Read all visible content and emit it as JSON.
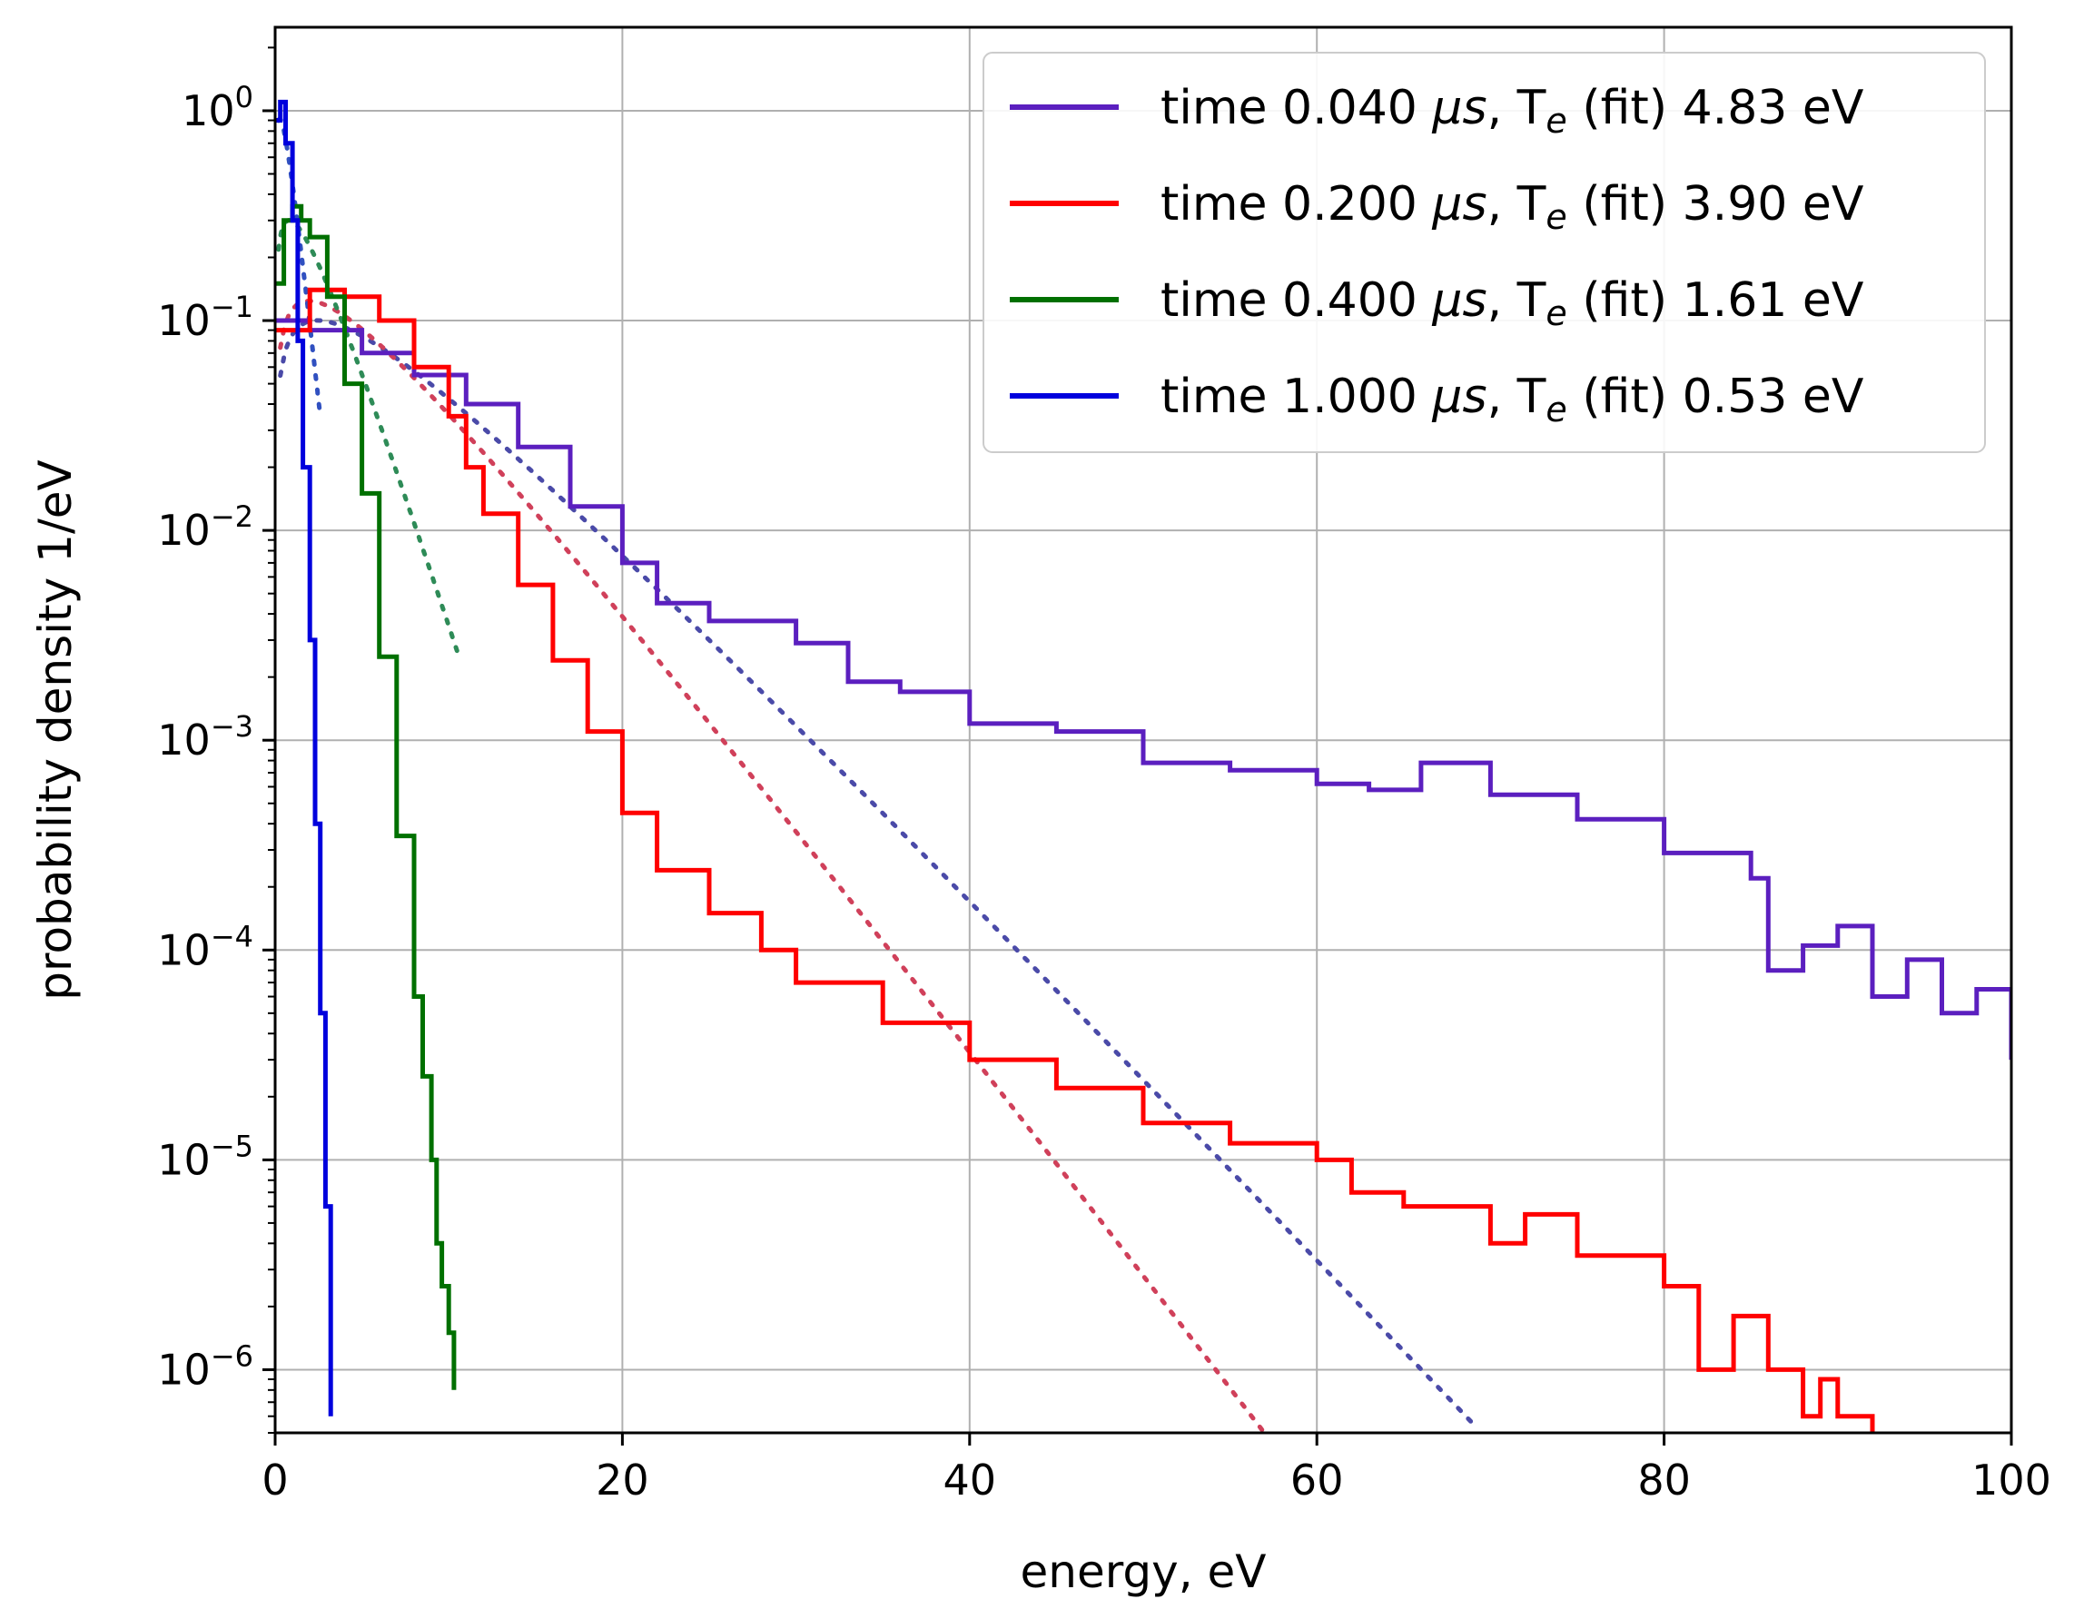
{
  "chart_data": {
    "type": "line",
    "title": "",
    "xlabel": "energy, eV",
    "ylabel": "probability density 1/eV",
    "xlim": [
      0,
      100
    ],
    "ylim": [
      5e-07,
      2.5
    ],
    "yscale": "log",
    "grid": true,
    "legend_position": "top-right",
    "x_ticks": [
      0,
      20,
      40,
      60,
      80,
      100
    ],
    "x_tick_labels": [
      "0",
      "20",
      "40",
      "60",
      "80",
      "100"
    ],
    "y_ticks": [
      1,
      0.1,
      0.01,
      0.001,
      0.0001,
      1e-05,
      1e-06
    ],
    "y_tick_labels": [
      {
        "base": "10",
        "exp": "0"
      },
      {
        "base": "10",
        "exp": "−1"
      },
      {
        "base": "10",
        "exp": "−2"
      },
      {
        "base": "10",
        "exp": "−3"
      },
      {
        "base": "10",
        "exp": "−4"
      },
      {
        "base": "10",
        "exp": "−5"
      },
      {
        "base": "10",
        "exp": "−6"
      }
    ],
    "series": [
      {
        "name": "time 0.040 μs, T_e (fit) 4.83 eV",
        "legend": {
          "prefix": "time 0.040 ",
          "mu": "μs",
          "mid": ", T",
          "sub": "e",
          "suffix": " (fit) 4.83 eV"
        },
        "color": "#5b1fbf",
        "x": [
          0,
          2,
          5,
          8,
          11,
          14,
          17,
          20,
          22,
          25,
          30,
          33,
          36,
          40,
          45,
          50,
          55,
          60,
          63,
          66,
          70,
          75,
          80,
          85,
          86,
          88,
          90,
          92,
          94,
          96,
          98,
          100
        ],
        "y": [
          0.1,
          0.09,
          0.07,
          0.055,
          0.04,
          0.025,
          0.013,
          0.007,
          0.0045,
          0.0037,
          0.0029,
          0.0019,
          0.0017,
          0.0012,
          0.0011,
          0.00078,
          0.00072,
          0.00062,
          0.00058,
          0.00078,
          0.00055,
          0.00042,
          0.00029,
          0.00022,
          8e-05,
          0.000105,
          0.00013,
          6e-05,
          9e-05,
          5e-05,
          6.5e-05,
          3e-05
        ],
        "fit": {
          "T": 4.83,
          "x_range": [
            0.3,
            69
          ],
          "color": "#4a4aa8"
        }
      },
      {
        "name": "time 0.200 μs, T_e (fit) 3.90 eV",
        "legend": {
          "prefix": "time 0.200 ",
          "mu": "μs",
          "mid": ", T",
          "sub": "e",
          "suffix": " (fit) 3.90 eV"
        },
        "color": "#ff0000",
        "x": [
          0,
          2,
          4,
          6,
          8,
          10,
          11,
          12,
          14,
          16,
          18,
          20,
          22,
          25,
          28,
          30,
          35,
          40,
          45,
          50,
          55,
          60,
          62,
          65,
          70,
          72,
          75,
          80,
          82,
          84,
          86,
          88,
          89,
          90,
          92
        ],
        "y": [
          0.09,
          0.14,
          0.13,
          0.1,
          0.06,
          0.035,
          0.02,
          0.012,
          0.0055,
          0.0024,
          0.0011,
          0.00045,
          0.00024,
          0.00015,
          0.0001,
          7e-05,
          4.5e-05,
          3e-05,
          2.2e-05,
          1.5e-05,
          1.2e-05,
          1e-05,
          7e-06,
          6e-06,
          4e-06,
          5.5e-06,
          3.5e-06,
          2.5e-06,
          1e-06,
          1.8e-06,
          1e-06,
          6e-07,
          9e-07,
          6e-07,
          5e-07
        ],
        "fit": {
          "T": 3.9,
          "x_range": [
            0.3,
            57
          ],
          "color": "#d0405a"
        }
      },
      {
        "name": "time 0.400 μs, T_e (fit) 1.61 eV",
        "legend": {
          "prefix": "time 0.400 ",
          "mu": "μs",
          "mid": ", T",
          "sub": "e",
          "suffix": " (fit) 1.61 eV"
        },
        "color": "#007000",
        "x": [
          0,
          0.5,
          1,
          1.5,
          2,
          3,
          4,
          5,
          6,
          7,
          8,
          8.5,
          9,
          9.3,
          9.6,
          10,
          10.3
        ],
        "y": [
          0.15,
          0.3,
          0.35,
          0.3,
          0.25,
          0.13,
          0.05,
          0.015,
          0.0025,
          0.00035,
          6e-05,
          2.5e-05,
          1e-05,
          4e-06,
          2.5e-06,
          1.5e-06,
          8e-07
        ],
        "fit": {
          "T": 1.61,
          "x_range": [
            0.2,
            10.5
          ],
          "color": "#2e8b57"
        }
      },
      {
        "name": "time 1.000 μs, T_e (fit) 0.53 eV",
        "legend": {
          "prefix": "time 1.000 ",
          "mu": "μs",
          "mid": ", T",
          "sub": "e",
          "suffix": " (fit) 0.53 eV"
        },
        "color": "#0000dd",
        "x": [
          0,
          0.3,
          0.6,
          1,
          1.3,
          1.6,
          2,
          2.3,
          2.6,
          2.9,
          3.2
        ],
        "y": [
          0.9,
          1.1,
          0.7,
          0.3,
          0.08,
          0.02,
          0.003,
          0.0004,
          5e-05,
          6e-06,
          6e-07
        ],
        "fit": {
          "T": 0.53,
          "x_range": [
            0.2,
            2.6
          ],
          "color": "#3050c0"
        }
      }
    ]
  }
}
